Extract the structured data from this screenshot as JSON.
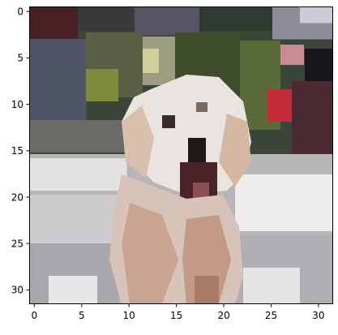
{
  "image": {
    "content": "pixelated-photo",
    "grid_rows": 32,
    "grid_cols": 32,
    "subject": "white fluffy dog with open mouth, blurred foliage background",
    "palette": {
      "background_top": "#3d4a3a",
      "foliage": "#6f7a3e",
      "dog_white": "#e9e4df",
      "dog_tan": "#c7a48e",
      "ground": "#b9b6ba",
      "mouth": "#2a1b1b",
      "accent_red": "#c62b3a"
    }
  },
  "axes": {
    "x_ticks": [
      "0",
      "5",
      "10",
      "15",
      "20",
      "25",
      "30"
    ],
    "y_ticks": [
      "0",
      "5",
      "10",
      "15",
      "20",
      "25",
      "30"
    ]
  }
}
